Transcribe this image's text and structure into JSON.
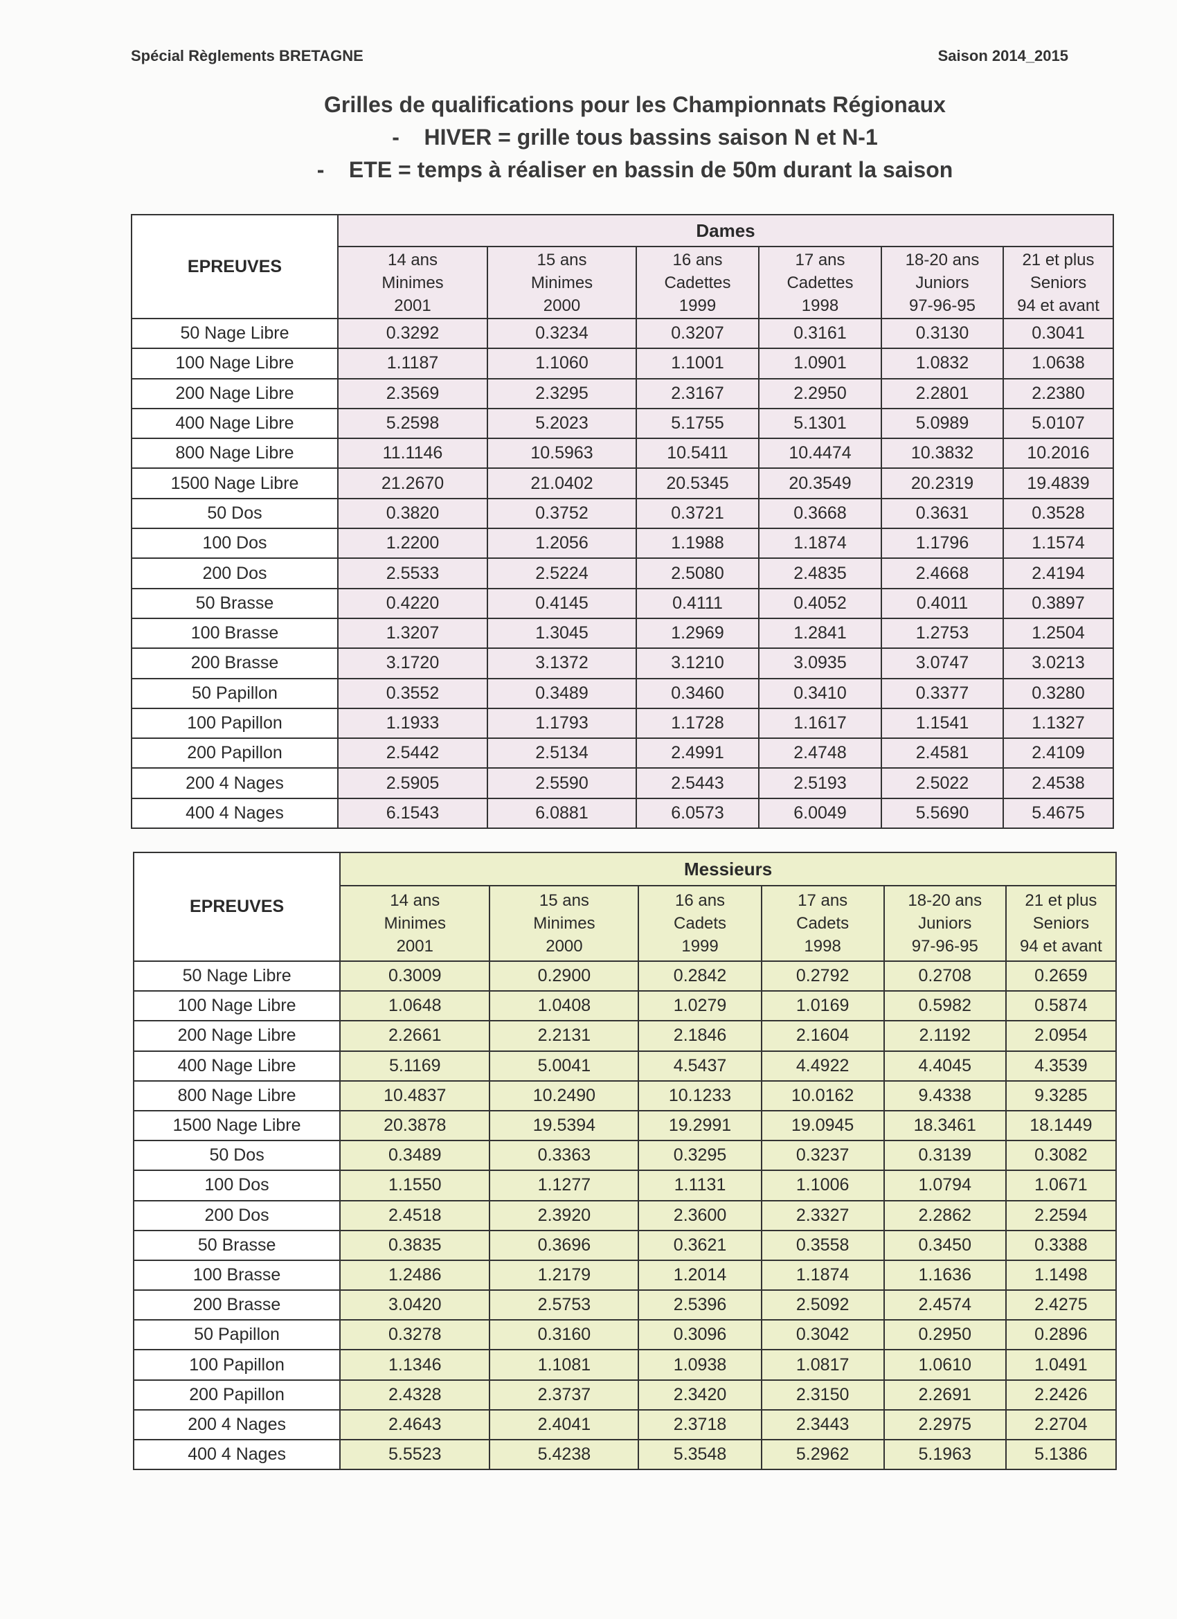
{
  "header": {
    "left": "Spécial Règlements BRETAGNE",
    "right": "Saison 2014_2015"
  },
  "titles": [
    "Grilles de qualifications pour les Championnats Régionaux",
    "-    HIVER = grille tous bassins saison N et N-1",
    "-    ETE = temps à réaliser en bassin de 50m durant la saison"
  ],
  "colors": {
    "dames_bg": "#f2e8ee",
    "messieurs_bg": "#edf0cc"
  },
  "tables": [
    {
      "epreuves_label": "EPREUVES",
      "group": "Dames",
      "columns": [
        [
          "14 ans",
          "Minimes",
          "2001"
        ],
        [
          "15 ans",
          "Minimes",
          "2000"
        ],
        [
          "16 ans",
          "Cadettes",
          "1999"
        ],
        [
          "17 ans",
          "Cadettes",
          "1998"
        ],
        [
          "18-20 ans",
          "Juniors",
          "97-96-95"
        ],
        [
          "21 et plus",
          "Seniors",
          "94 et avant"
        ]
      ],
      "rows": [
        [
          "50 Nage Libre",
          "0.3292",
          "0.3234",
          "0.3207",
          "0.3161",
          "0.3130",
          "0.3041"
        ],
        [
          "100 Nage Libre",
          "1.1187",
          "1.1060",
          "1.1001",
          "1.0901",
          "1.0832",
          "1.0638"
        ],
        [
          "200 Nage Libre",
          "2.3569",
          "2.3295",
          "2.3167",
          "2.2950",
          "2.2801",
          "2.2380"
        ],
        [
          "400 Nage Libre",
          "5.2598",
          "5.2023",
          "5.1755",
          "5.1301",
          "5.0989",
          "5.0107"
        ],
        [
          "800 Nage Libre",
          "11.1146",
          "10.5963",
          "10.5411",
          "10.4474",
          "10.3832",
          "10.2016"
        ],
        [
          "1500 Nage Libre",
          "21.2670",
          "21.0402",
          "20.5345",
          "20.3549",
          "20.2319",
          "19.4839"
        ],
        [
          "50 Dos",
          "0.3820",
          "0.3752",
          "0.3721",
          "0.3668",
          "0.3631",
          "0.3528"
        ],
        [
          "100 Dos",
          "1.2200",
          "1.2056",
          "1.1988",
          "1.1874",
          "1.1796",
          "1.1574"
        ],
        [
          "200 Dos",
          "2.5533",
          "2.5224",
          "2.5080",
          "2.4835",
          "2.4668",
          "2.4194"
        ],
        [
          "50 Brasse",
          "0.4220",
          "0.4145",
          "0.4111",
          "0.4052",
          "0.4011",
          "0.3897"
        ],
        [
          "100 Brasse",
          "1.3207",
          "1.3045",
          "1.2969",
          "1.2841",
          "1.2753",
          "1.2504"
        ],
        [
          "200 Brasse",
          "3.1720",
          "3.1372",
          "3.1210",
          "3.0935",
          "3.0747",
          "3.0213"
        ],
        [
          "50 Papillon",
          "0.3552",
          "0.3489",
          "0.3460",
          "0.3410",
          "0.3377",
          "0.3280"
        ],
        [
          "100 Papillon",
          "1.1933",
          "1.1793",
          "1.1728",
          "1.1617",
          "1.1541",
          "1.1327"
        ],
        [
          "200 Papillon",
          "2.5442",
          "2.5134",
          "2.4991",
          "2.4748",
          "2.4581",
          "2.4109"
        ],
        [
          "200 4 Nages",
          "2.5905",
          "2.5590",
          "2.5443",
          "2.5193",
          "2.5022",
          "2.4538"
        ],
        [
          "400 4 Nages",
          "6.1543",
          "6.0881",
          "6.0573",
          "6.0049",
          "5.5690",
          "5.4675"
        ]
      ]
    },
    {
      "epreuves_label": "EPREUVES",
      "group": "Messieurs",
      "columns": [
        [
          "14 ans",
          "Minimes",
          "2001"
        ],
        [
          "15 ans",
          "Minimes",
          "2000"
        ],
        [
          "16 ans",
          "Cadets",
          "1999"
        ],
        [
          "17 ans",
          "Cadets",
          "1998"
        ],
        [
          "18-20 ans",
          "Juniors",
          "97-96-95"
        ],
        [
          "21 et plus",
          "Seniors",
          "94 et avant"
        ]
      ],
      "rows": [
        [
          "50 Nage Libre",
          "0.3009",
          "0.2900",
          "0.2842",
          "0.2792",
          "0.2708",
          "0.2659"
        ],
        [
          "100 Nage Libre",
          "1.0648",
          "1.0408",
          "1.0279",
          "1.0169",
          "0.5982",
          "0.5874"
        ],
        [
          "200 Nage Libre",
          "2.2661",
          "2.2131",
          "2.1846",
          "2.1604",
          "2.1192",
          "2.0954"
        ],
        [
          "400 Nage Libre",
          "5.1169",
          "5.0041",
          "4.5437",
          "4.4922",
          "4.4045",
          "4.3539"
        ],
        [
          "800 Nage Libre",
          "10.4837",
          "10.2490",
          "10.1233",
          "10.0162",
          "9.4338",
          "9.3285"
        ],
        [
          "1500 Nage Libre",
          "20.3878",
          "19.5394",
          "19.2991",
          "19.0945",
          "18.3461",
          "18.1449"
        ],
        [
          "50 Dos",
          "0.3489",
          "0.3363",
          "0.3295",
          "0.3237",
          "0.3139",
          "0.3082"
        ],
        [
          "100 Dos",
          "1.1550",
          "1.1277",
          "1.1131",
          "1.1006",
          "1.0794",
          "1.0671"
        ],
        [
          "200 Dos",
          "2.4518",
          "2.3920",
          "2.3600",
          "2.3327",
          "2.2862",
          "2.2594"
        ],
        [
          "50 Brasse",
          "0.3835",
          "0.3696",
          "0.3621",
          "0.3558",
          "0.3450",
          "0.3388"
        ],
        [
          "100 Brasse",
          "1.2486",
          "1.2179",
          "1.2014",
          "1.1874",
          "1.1636",
          "1.1498"
        ],
        [
          "200 Brasse",
          "3.0420",
          "2.5753",
          "2.5396",
          "2.5092",
          "2.4574",
          "2.4275"
        ],
        [
          "50 Papillon",
          "0.3278",
          "0.3160",
          "0.3096",
          "0.3042",
          "0.2950",
          "0.2896"
        ],
        [
          "100 Papillon",
          "1.1346",
          "1.1081",
          "1.0938",
          "1.0817",
          "1.0610",
          "1.0491"
        ],
        [
          "200 Papillon",
          "2.4328",
          "2.3737",
          "2.3420",
          "2.3150",
          "2.2691",
          "2.2426"
        ],
        [
          "200 4 Nages",
          "2.4643",
          "2.4041",
          "2.3718",
          "2.3443",
          "2.2975",
          "2.2704"
        ],
        [
          "400 4 Nages",
          "5.5523",
          "5.4238",
          "5.3548",
          "5.2962",
          "5.1963",
          "5.1386"
        ]
      ]
    }
  ]
}
